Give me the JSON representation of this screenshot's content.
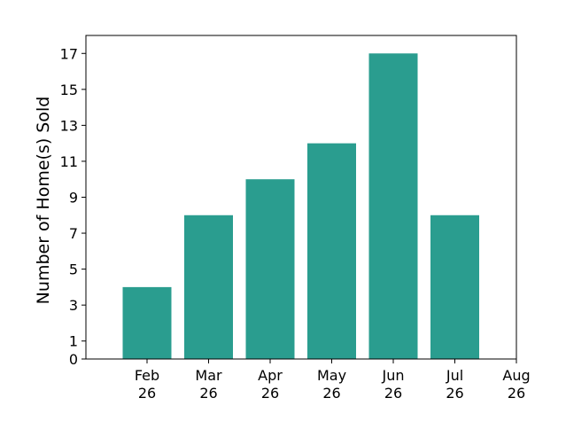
{
  "chart_data": {
    "type": "bar",
    "title": "",
    "xlabel": "",
    "ylabel": "Number of Home(s) Sold",
    "categories": [
      "Feb 26",
      "Mar 26",
      "Apr 26",
      "May 26",
      "Jun 26",
      "Jul 26"
    ],
    "values": [
      4,
      8,
      10,
      12,
      17,
      8
    ],
    "x_ticks": [
      {
        "month": "Feb",
        "year": "26"
      },
      {
        "month": "Mar",
        "year": "26"
      },
      {
        "month": "Apr",
        "year": "26"
      },
      {
        "month": "May",
        "year": "26"
      },
      {
        "month": "Jun",
        "year": "26"
      },
      {
        "month": "Jul",
        "year": "26"
      },
      {
        "month": "Aug",
        "year": "26"
      }
    ],
    "y_ticks": [
      0,
      1,
      3,
      5,
      7,
      9,
      11,
      13,
      15,
      17
    ],
    "ylim": [
      0,
      18
    ],
    "grid": false,
    "bar_color": "#2a9d8f"
  }
}
